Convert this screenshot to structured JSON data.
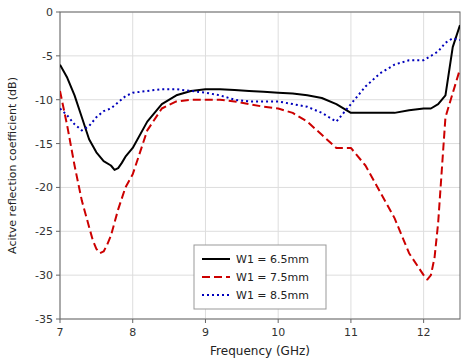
{
  "chart_data": {
    "type": "line",
    "title": "",
    "x_label": "Frequency (GHz)",
    "y_label": "Acitve reflection coefficient (dB)",
    "xlim": [
      7,
      12.5
    ],
    "ylim": [
      -35,
      0
    ],
    "xticks": [
      7,
      8,
      9,
      10,
      11,
      12
    ],
    "yticks": [
      0,
      -5,
      -10,
      -15,
      -20,
      -25,
      -30,
      -35
    ],
    "grid": true,
    "legend": "lower center",
    "series": [
      {
        "name": "W1 = 6.5mm",
        "color": "#000000",
        "line_style": "solid",
        "x": [
          7.0,
          7.1,
          7.2,
          7.3,
          7.4,
          7.5,
          7.6,
          7.7,
          7.75,
          7.8,
          7.85,
          7.9,
          8.0,
          8.2,
          8.4,
          8.6,
          8.8,
          9.0,
          9.2,
          9.4,
          9.6,
          9.8,
          10.0,
          10.2,
          10.4,
          10.6,
          10.8,
          11.0,
          11.2,
          11.4,
          11.6,
          11.8,
          12.0,
          12.1,
          12.2,
          12.3,
          12.4,
          12.5
        ],
        "values": [
          -6.0,
          -7.5,
          -9.5,
          -12.0,
          -14.5,
          -16.0,
          -17.0,
          -17.5,
          -18.0,
          -17.8,
          -17.2,
          -16.5,
          -15.5,
          -12.5,
          -10.5,
          -9.5,
          -9.0,
          -8.8,
          -8.8,
          -8.9,
          -9.0,
          -9.1,
          -9.2,
          -9.3,
          -9.5,
          -9.8,
          -10.5,
          -11.5,
          -11.5,
          -11.5,
          -11.5,
          -11.2,
          -11.0,
          -11.0,
          -10.5,
          -9.5,
          -4.0,
          -1.5
        ]
      },
      {
        "name": "W1 = 7.5mm",
        "color": "#cc0000",
        "line_style": "dashed",
        "x": [
          7.0,
          7.1,
          7.2,
          7.3,
          7.4,
          7.45,
          7.5,
          7.55,
          7.6,
          7.65,
          7.7,
          7.8,
          7.9,
          8.0,
          8.2,
          8.4,
          8.6,
          8.8,
          9.0,
          9.2,
          9.4,
          9.6,
          9.8,
          10.0,
          10.2,
          10.4,
          10.6,
          10.8,
          11.0,
          11.2,
          11.4,
          11.6,
          11.8,
          12.0,
          12.05,
          12.1,
          12.15,
          12.2,
          12.3,
          12.5
        ],
        "values": [
          -9.0,
          -13.0,
          -17.5,
          -21.5,
          -24.5,
          -26.0,
          -27.0,
          -27.5,
          -27.3,
          -26.5,
          -25.5,
          -22.5,
          -20.0,
          -18.5,
          -13.5,
          -11.0,
          -10.2,
          -10.0,
          -10.0,
          -10.0,
          -10.2,
          -10.5,
          -10.8,
          -11.0,
          -11.5,
          -12.5,
          -14.0,
          -15.5,
          -15.5,
          -17.5,
          -20.5,
          -23.5,
          -27.5,
          -30.0,
          -30.5,
          -30.0,
          -28.0,
          -24.0,
          -12.0,
          -6.5
        ]
      },
      {
        "name": "W1 = 8.5mm",
        "color": "#0000bb",
        "line_style": "dotted",
        "x": [
          7.0,
          7.1,
          7.2,
          7.3,
          7.4,
          7.5,
          7.6,
          7.7,
          7.8,
          7.9,
          8.0,
          8.2,
          8.4,
          8.6,
          8.8,
          9.0,
          9.2,
          9.4,
          9.6,
          9.8,
          10.0,
          10.2,
          10.4,
          10.6,
          10.8,
          11.0,
          11.2,
          11.4,
          11.6,
          11.8,
          12.0,
          12.1,
          12.2,
          12.3,
          12.4,
          12.5
        ],
        "values": [
          -11.0,
          -11.8,
          -12.8,
          -13.5,
          -13.0,
          -12.0,
          -11.3,
          -11.0,
          -10.3,
          -9.6,
          -9.2,
          -9.0,
          -8.8,
          -8.8,
          -9.0,
          -9.2,
          -9.5,
          -10.0,
          -10.2,
          -10.2,
          -10.2,
          -10.5,
          -10.8,
          -11.5,
          -12.5,
          -10.5,
          -8.5,
          -7.0,
          -6.0,
          -5.5,
          -5.5,
          -5.0,
          -4.5,
          -3.5,
          -3.0,
          -3.2
        ]
      }
    ]
  }
}
